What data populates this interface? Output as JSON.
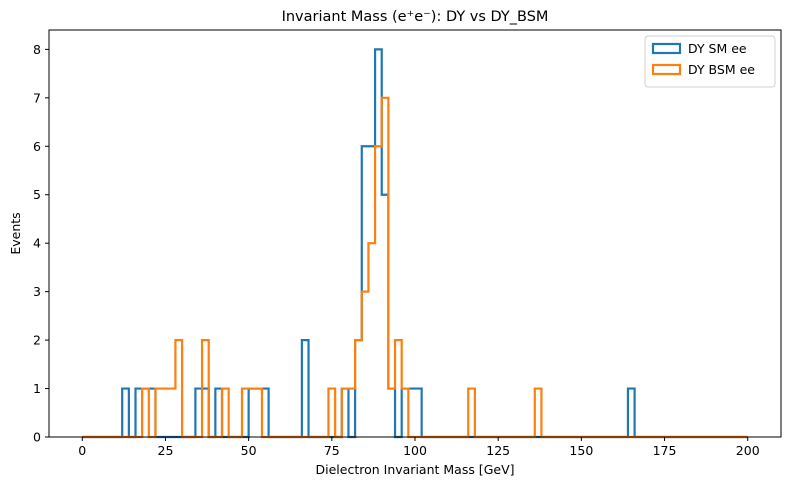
{
  "chart_data": {
    "type": "histogram-step",
    "title": "Invariant Mass (e⁺e⁻): DY vs DY_BSM",
    "xlabel": "Dielectron Invariant Mass [GeV]",
    "ylabel": "Events",
    "xlim": [
      -10,
      210
    ],
    "ylim": [
      0,
      8.4
    ],
    "xticks": [
      0,
      25,
      50,
      75,
      100,
      125,
      150,
      175,
      200
    ],
    "yticks": [
      0,
      1,
      2,
      3,
      4,
      5,
      6,
      7,
      8
    ],
    "grid": false,
    "legend_position": "top-right",
    "bin_edges_range": [
      0,
      200
    ],
    "bin_width": 2,
    "series": [
      {
        "name": "DY SM ee",
        "color": "#1f77b4",
        "counts": [
          0,
          0,
          0,
          0,
          0,
          0,
          1,
          0,
          1,
          1,
          1,
          0,
          0,
          0,
          0,
          0,
          0,
          1,
          1,
          0,
          1,
          0,
          0,
          0,
          0,
          1,
          1,
          1,
          0,
          0,
          0,
          0,
          0,
          2,
          0,
          0,
          0,
          0,
          0,
          1,
          0,
          2,
          6,
          6,
          8,
          5,
          1,
          0,
          1,
          1,
          1,
          0,
          0,
          0,
          0,
          0,
          0,
          0,
          0,
          0,
          0,
          0,
          0,
          0,
          0,
          0,
          0,
          0,
          0,
          0,
          0,
          0,
          0,
          0,
          0,
          0,
          0,
          0,
          0,
          0,
          0,
          0,
          1,
          0,
          0,
          0,
          0,
          0,
          0,
          0,
          0,
          0,
          0,
          0,
          0,
          0,
          0,
          0,
          0,
          0
        ]
      },
      {
        "name": "DY BSM ee",
        "color": "#ff7f0e",
        "counts": [
          0,
          0,
          0,
          0,
          0,
          0,
          0,
          0,
          0,
          1,
          0,
          1,
          1,
          1,
          2,
          0,
          0,
          0,
          2,
          0,
          0,
          1,
          0,
          0,
          1,
          1,
          1,
          0,
          0,
          0,
          0,
          0,
          0,
          0,
          0,
          0,
          0,
          1,
          0,
          1,
          1,
          2,
          3,
          4,
          6,
          7,
          1,
          2,
          1,
          0,
          0,
          0,
          0,
          0,
          0,
          0,
          0,
          0,
          1,
          0,
          0,
          0,
          0,
          0,
          0,
          0,
          0,
          0,
          1,
          0,
          0,
          0,
          0,
          0,
          0,
          0,
          0,
          0,
          0,
          0,
          0,
          0,
          0,
          0,
          0,
          0,
          0,
          0,
          0,
          0,
          0,
          0,
          0,
          0,
          0,
          0,
          0,
          0,
          0,
          0
        ]
      }
    ]
  }
}
